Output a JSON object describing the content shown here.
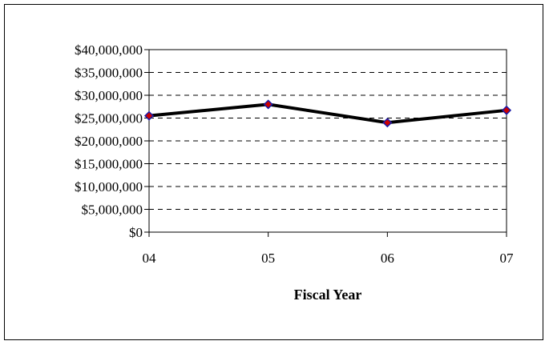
{
  "chart_data": {
    "type": "line",
    "title": "",
    "xlabel": "Fiscal Year",
    "ylabel": "",
    "categories": [
      "04",
      "05",
      "06",
      "07"
    ],
    "series": [
      {
        "values": [
          25500000,
          28000000,
          24000000,
          26700000
        ]
      }
    ],
    "ylim": [
      0,
      40000000
    ],
    "y_ticks": [
      "$0",
      "$5,000,000",
      "$10,000,000",
      "$15,000,000",
      "$20,000,000",
      "$25,000,000",
      "$30,000,000",
      "$35,000,000",
      "$40,000,000"
    ],
    "y_tick_values": [
      0,
      5000000,
      10000000,
      15000000,
      20000000,
      25000000,
      30000000,
      35000000,
      40000000
    ],
    "grid": "horizontal-dashed",
    "legend": "none",
    "colors": {
      "line": "#000000",
      "marker_fill": "#cc0000",
      "marker_stroke": "#1a1aa6",
      "grid": "#000000"
    }
  }
}
